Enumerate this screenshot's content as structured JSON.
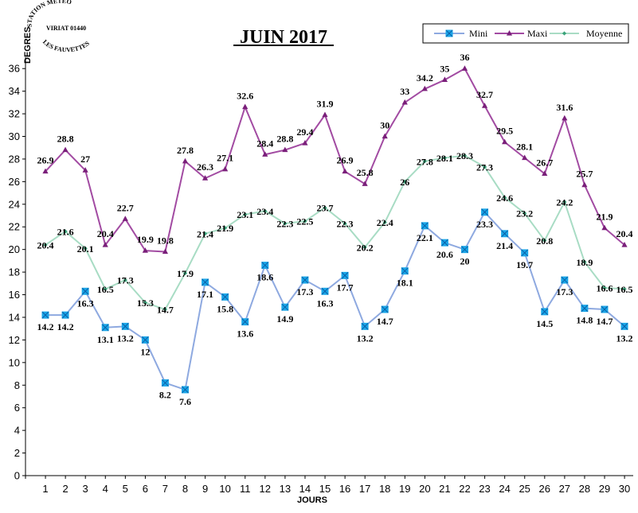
{
  "logo": {
    "lines": [
      "STATION METEO",
      "VIRIAT 01440",
      "LES FAUVETTES"
    ]
  },
  "chart_data": {
    "type": "line",
    "title": "JUIN 2017",
    "xlabel": "JOURS",
    "ylabel": "DEGRES",
    "ylim": [
      0,
      37
    ],
    "yticks": [
      0,
      2,
      4,
      6,
      8,
      10,
      12,
      14,
      16,
      18,
      20,
      22,
      24,
      26,
      28,
      30,
      32,
      34,
      36
    ],
    "x": [
      1,
      2,
      3,
      4,
      5,
      6,
      7,
      8,
      9,
      10,
      11,
      12,
      13,
      14,
      15,
      16,
      17,
      18,
      19,
      20,
      21,
      22,
      23,
      24,
      25,
      26,
      27,
      28,
      29,
      30
    ],
    "legend_position": "top-right",
    "grid": false,
    "series": [
      {
        "name": "Mini",
        "color": "#8ea9e0",
        "marker_color": "#1aa7e8",
        "marker": "square-x",
        "label_position": "below",
        "values": [
          14.2,
          14.2,
          16.3,
          13.1,
          13.2,
          12,
          8.2,
          7.6,
          17.1,
          15.8,
          13.6,
          18.6,
          14.9,
          17.3,
          16.3,
          17.7,
          13.2,
          14.7,
          18.1,
          22.1,
          20.6,
          20,
          23.3,
          21.4,
          19.7,
          14.5,
          17.3,
          14.8,
          14.7,
          13.2
        ]
      },
      {
        "name": "Maxi",
        "color": "#a24ba2",
        "marker_color": "#7a1f7a",
        "marker": "triangle",
        "label_position": "above",
        "values": [
          26.9,
          28.8,
          27,
          20.4,
          22.7,
          19.9,
          19.8,
          27.8,
          26.3,
          27.1,
          32.6,
          28.4,
          28.8,
          29.4,
          31.9,
          26.9,
          25.8,
          30,
          33,
          34.2,
          35,
          36,
          32.7,
          29.5,
          28.1,
          26.7,
          31.6,
          25.7,
          21.9,
          20.4
        ]
      },
      {
        "name": "Moyenne",
        "color": "#a8dcc4",
        "marker_color": "#3aa37a",
        "marker": "diamond",
        "label_position": "center",
        "values": [
          20.4,
          21.6,
          20.1,
          16.5,
          17.3,
          15.3,
          14.7,
          17.9,
          21.4,
          21.9,
          23.1,
          23.4,
          22.3,
          22.5,
          23.7,
          22.3,
          20.2,
          22.4,
          26,
          27.8,
          28.1,
          28.3,
          27.3,
          24.6,
          23.2,
          20.8,
          24.2,
          18.9,
          16.6,
          16.5
        ]
      }
    ]
  }
}
